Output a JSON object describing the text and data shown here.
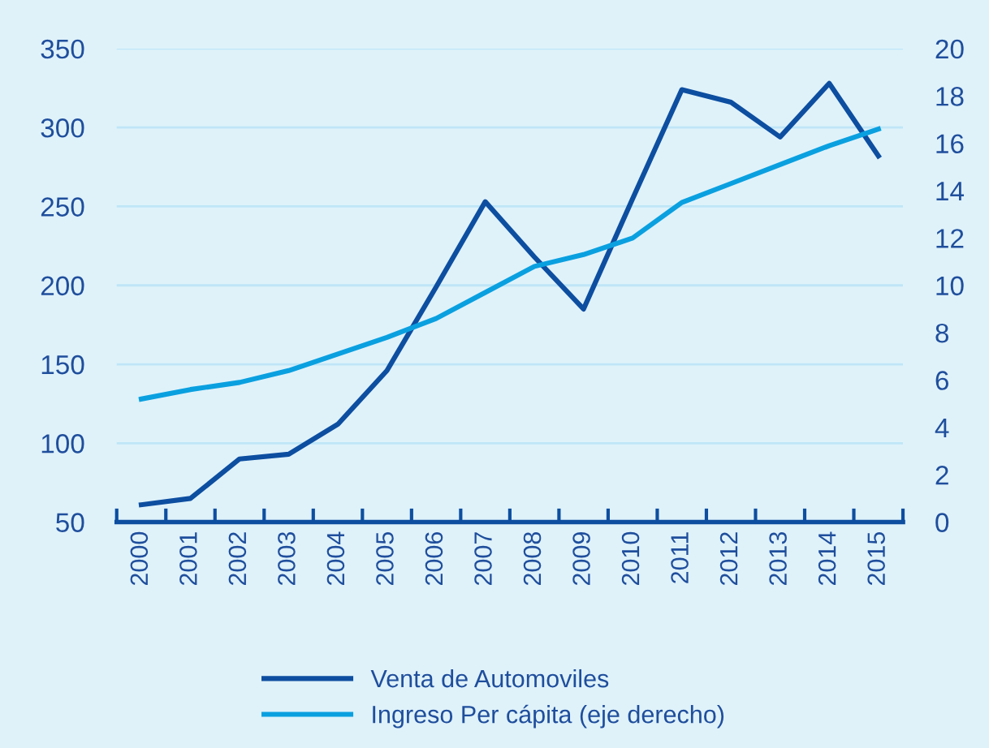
{
  "chart_data": {
    "type": "line",
    "categories": [
      "2000",
      "2001",
      "2002",
      "2003",
      "2004",
      "2005",
      "2006",
      "2007",
      "2008",
      "2009",
      "2010",
      "2011",
      "2012",
      "2013",
      "2014",
      "2015"
    ],
    "series": [
      {
        "name": "Venta de Automoviles",
        "color": "#0d4ea0",
        "values": [
          61,
          65,
          90,
          93,
          112,
          146,
          199,
          253,
          218,
          185,
          255,
          324,
          316,
          294,
          328,
          282
        ]
      },
      {
        "name": "Ingreso Per cápita (eje derecho)",
        "color": "#0aa0e0",
        "axis": "y2",
        "values": [
          5.2,
          5.6,
          5.9,
          6.4,
          7.1,
          7.8,
          8.6,
          9.7,
          10.8,
          11.3,
          12.0,
          13.5,
          14.3,
          15.1,
          15.9,
          16.6
        ]
      }
    ],
    "ylim": [
      50,
      350
    ],
    "yticks": [
      50,
      100,
      150,
      200,
      250,
      300,
      350
    ],
    "y2lim": [
      0,
      20
    ],
    "y2ticks": [
      0,
      2,
      4,
      6,
      8,
      10,
      12,
      14,
      16,
      18,
      20
    ],
    "grid": "y",
    "legend": "bottom",
    "marker": "none",
    "line_style": "solid"
  }
}
